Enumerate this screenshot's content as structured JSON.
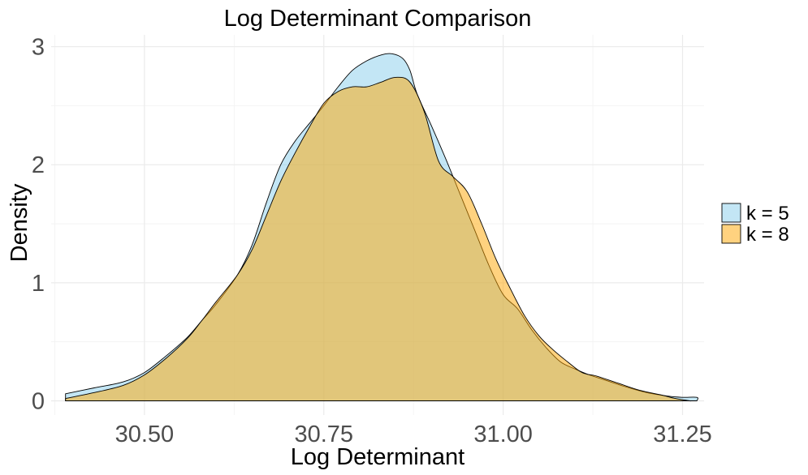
{
  "chart_data": {
    "type": "area",
    "title": "Log Determinant Comparison",
    "xlabel": "Log Determinant",
    "ylabel": "Density",
    "xlim": [
      30.37,
      31.28
    ],
    "ylim": [
      -0.12,
      3.1
    ],
    "x_ticks": [
      30.5,
      30.75,
      31.0,
      31.25
    ],
    "x_tick_labels": [
      "30.50",
      "30.75",
      "31.00",
      "31.25"
    ],
    "y_ticks": [
      0,
      1,
      2,
      3
    ],
    "y_tick_labels": [
      "0",
      "1",
      "2",
      "3"
    ],
    "grid": true,
    "legend_position": "right",
    "series": [
      {
        "name": "k = 5",
        "color": "#87CEEB",
        "x": [
          30.39,
          30.43,
          30.47,
          30.5,
          30.53,
          30.56,
          30.58,
          30.6,
          30.63,
          30.65,
          30.67,
          30.69,
          30.71,
          30.73,
          30.75,
          30.77,
          30.79,
          30.81,
          30.83,
          30.845,
          30.86,
          30.87,
          30.88,
          30.9,
          30.92,
          30.94,
          30.96,
          30.98,
          31.0,
          31.02,
          31.04,
          31.06,
          31.08,
          31.1,
          31.12,
          31.14,
          31.17,
          31.2,
          31.23,
          31.25,
          31.27,
          31.27
        ],
        "y": [
          0.06,
          0.11,
          0.16,
          0.24,
          0.38,
          0.54,
          0.68,
          0.82,
          1.07,
          1.32,
          1.68,
          2.0,
          2.2,
          2.35,
          2.5,
          2.66,
          2.8,
          2.88,
          2.93,
          2.94,
          2.9,
          2.8,
          2.6,
          2.33,
          2.05,
          1.75,
          1.45,
          1.15,
          0.9,
          0.78,
          0.6,
          0.45,
          0.33,
          0.27,
          0.22,
          0.18,
          0.12,
          0.07,
          0.04,
          0.03,
          0.03,
          0.0
        ]
      },
      {
        "name": "k = 8",
        "color": "#FFA500",
        "x": [
          30.39,
          30.43,
          30.47,
          30.5,
          30.53,
          30.56,
          30.58,
          30.6,
          30.63,
          30.65,
          30.67,
          30.69,
          30.71,
          30.73,
          30.75,
          30.77,
          30.79,
          30.81,
          30.83,
          30.85,
          30.87,
          30.89,
          30.91,
          30.93,
          30.95,
          30.97,
          30.99,
          31.01,
          31.03,
          31.05,
          31.07,
          31.09,
          31.11,
          31.13,
          31.16,
          31.19,
          31.22,
          31.24,
          31.26,
          31.26
        ],
        "y": [
          0.02,
          0.07,
          0.13,
          0.22,
          0.36,
          0.53,
          0.68,
          0.84,
          1.07,
          1.28,
          1.57,
          1.86,
          2.1,
          2.32,
          2.52,
          2.62,
          2.66,
          2.66,
          2.7,
          2.74,
          2.7,
          2.45,
          2.03,
          1.9,
          1.77,
          1.5,
          1.2,
          0.95,
          0.72,
          0.55,
          0.43,
          0.33,
          0.24,
          0.21,
          0.15,
          0.09,
          0.05,
          0.02,
          0.0,
          0.0
        ]
      }
    ]
  }
}
